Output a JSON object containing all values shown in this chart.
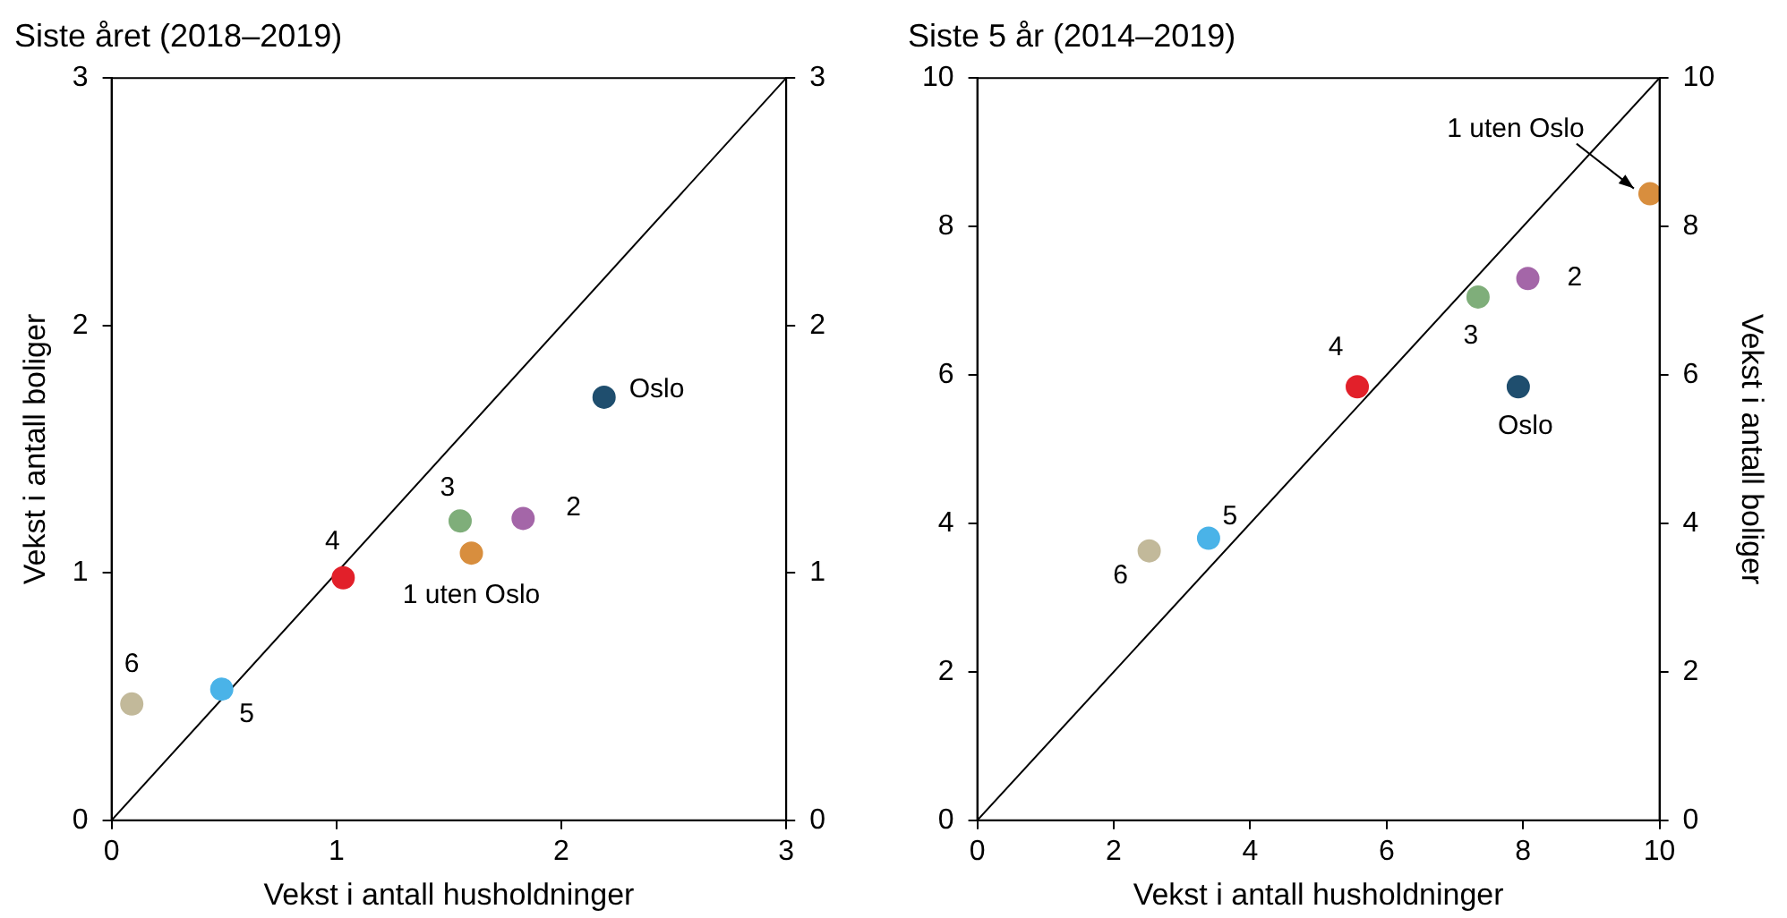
{
  "chart_data": [
    {
      "type": "scatter",
      "title": "Siste året (2018–2019)",
      "xlabel": "Vekst i antall husholdninger",
      "ylabel": "Vekst i antall boliger",
      "xlim": [
        0,
        3
      ],
      "xticks": [
        0,
        1,
        2,
        3
      ],
      "ylim": [
        0,
        3
      ],
      "yticks": [
        0,
        1,
        2,
        3
      ],
      "y2lim": [
        0,
        3
      ],
      "y2ticks": [
        0,
        1,
        2,
        3
      ],
      "grid": false,
      "legend": false,
      "marker": "circle",
      "series": [
        {
          "name": "1 uten Oslo",
          "color": "#d88e3e",
          "x": [
            1.6
          ],
          "values": [
            1.08
          ]
        },
        {
          "name": "2",
          "color": "#a466a8",
          "x": [
            1.83
          ],
          "values": [
            1.22
          ]
        },
        {
          "name": "3",
          "color": "#7fae7a",
          "x": [
            1.55
          ],
          "values": [
            1.21
          ]
        },
        {
          "name": "4",
          "color": "#e2202a",
          "x": [
            1.03
          ],
          "values": [
            0.98
          ]
        },
        {
          "name": "5",
          "color": "#4ab3e8",
          "x": [
            0.49
          ],
          "values": [
            0.53
          ]
        },
        {
          "name": "6",
          "color": "#c2b99a",
          "x": [
            0.09
          ],
          "values": [
            0.47
          ]
        },
        {
          "name": "Oslo",
          "color": "#1f4e6e",
          "x": [
            2.19
          ],
          "values": [
            1.71
          ]
        },
        {
          "type": "line",
          "marker": "none",
          "color": "#000000",
          "x": [
            0,
            3
          ],
          "values": [
            0,
            3
          ]
        }
      ]
    },
    {
      "type": "scatter",
      "title": "Siste 5 år (2014–2019)",
      "xlabel": "Vekst i antall husholdninger",
      "y2label": "Vekst i antall boliger",
      "xlim": [
        0,
        10
      ],
      "xticks": [
        0,
        2,
        4,
        6,
        8,
        10
      ],
      "ylim": [
        0,
        10
      ],
      "yticks": [
        0,
        2,
        4,
        6,
        8,
        10
      ],
      "y2lim": [
        0,
        10
      ],
      "y2ticks": [
        0,
        2,
        4,
        6,
        8,
        10
      ],
      "grid": false,
      "legend": false,
      "marker": "circle",
      "series": [
        {
          "name": "1 uten Oslo",
          "color": "#d88e3e",
          "x": [
            9.86
          ],
          "values": [
            8.44
          ]
        },
        {
          "name": "2",
          "color": "#a466a8",
          "x": [
            8.07
          ],
          "values": [
            7.3
          ]
        },
        {
          "name": "3",
          "color": "#7fae7a",
          "x": [
            7.34
          ],
          "values": [
            7.05
          ]
        },
        {
          "name": "4",
          "color": "#e2202a",
          "x": [
            5.57
          ],
          "values": [
            5.84
          ]
        },
        {
          "name": "5",
          "color": "#4ab3e8",
          "x": [
            3.39
          ],
          "values": [
            3.8
          ]
        },
        {
          "name": "6",
          "color": "#c2b99a",
          "x": [
            2.52
          ],
          "values": [
            3.63
          ]
        },
        {
          "name": "Oslo",
          "color": "#1f4e6e",
          "x": [
            7.93
          ],
          "values": [
            5.84
          ]
        },
        {
          "type": "line",
          "marker": "none",
          "color": "#000000",
          "x": [
            0,
            10
          ],
          "values": [
            0,
            10
          ]
        }
      ]
    }
  ]
}
